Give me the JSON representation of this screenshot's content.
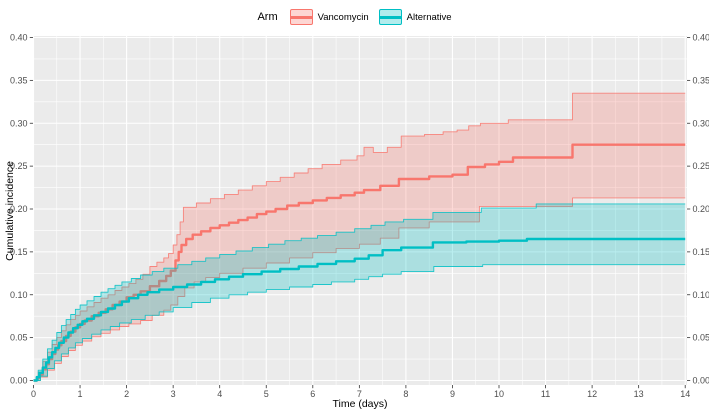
{
  "chart_data": {
    "type": "line",
    "subtype": "step-with-confidence-ribbons",
    "title": "",
    "xlabel": "Time (days)",
    "ylabel": "Cumulative incidence",
    "xlim": [
      0,
      14
    ],
    "ylim": [
      0,
      0.4
    ],
    "xticks": [
      0,
      1,
      2,
      3,
      4,
      5,
      6,
      7,
      8,
      9,
      10,
      11,
      12,
      13,
      14
    ],
    "xtick_labels": [
      "0",
      "1",
      "2",
      "3",
      "4",
      "5",
      "6",
      "7",
      "8",
      "9",
      "10",
      "11",
      "12",
      "13",
      "14"
    ],
    "yticks": [
      0.0,
      0.05,
      0.1,
      0.15,
      0.2,
      0.25,
      0.3,
      0.35,
      0.4
    ],
    "ytick_labels": [
      "0.00",
      "0.05",
      "0.10",
      "0.15",
      "0.20",
      "0.25",
      "0.30",
      "0.35",
      "0.40"
    ],
    "secondary_y_axis": true,
    "grid": {
      "major": true,
      "minor": true,
      "color": "#FFFFFF",
      "panel_background": "#EBEBEB"
    },
    "legend": {
      "title": "Arm",
      "position": "top"
    },
    "colors": {
      "vancomycin": "#F8766D",
      "alternative": "#00BFC4",
      "tick_text": "#4D4D4D",
      "tick_mark": "#333333"
    },
    "series": [
      {
        "name": "Vancomycin",
        "color": "#F8766D",
        "line": [
          [
            0,
            0
          ],
          [
            0.07,
            0.003
          ],
          [
            0.13,
            0.007
          ],
          [
            0.2,
            0.013
          ],
          [
            0.27,
            0.019
          ],
          [
            0.33,
            0.025
          ],
          [
            0.4,
            0.031
          ],
          [
            0.47,
            0.036
          ],
          [
            0.53,
            0.041
          ],
          [
            0.6,
            0.046
          ],
          [
            0.7,
            0.052
          ],
          [
            0.8,
            0.057
          ],
          [
            0.9,
            0.062
          ],
          [
            1,
            0.066
          ],
          [
            1.1,
            0.07
          ],
          [
            1.25,
            0.075
          ],
          [
            1.4,
            0.079
          ],
          [
            1.55,
            0.083
          ],
          [
            1.7,
            0.088
          ],
          [
            1.85,
            0.092
          ],
          [
            2,
            0.097
          ],
          [
            2.15,
            0.1
          ],
          [
            2.3,
            0.104
          ],
          [
            2.5,
            0.11
          ],
          [
            2.7,
            0.116
          ],
          [
            2.85,
            0.122
          ],
          [
            2.95,
            0.128
          ],
          [
            3.05,
            0.14
          ],
          [
            3.12,
            0.15
          ],
          [
            3.18,
            0.158
          ],
          [
            3.28,
            0.165
          ],
          [
            3.42,
            0.17
          ],
          [
            3.6,
            0.174
          ],
          [
            3.8,
            0.178
          ],
          [
            4,
            0.181
          ],
          [
            4.2,
            0.184
          ],
          [
            4.4,
            0.187
          ],
          [
            4.6,
            0.19
          ],
          [
            4.8,
            0.194
          ],
          [
            5,
            0.197
          ],
          [
            5.2,
            0.2
          ],
          [
            5.45,
            0.204
          ],
          [
            5.7,
            0.207
          ],
          [
            6,
            0.21
          ],
          [
            6.3,
            0.213
          ],
          [
            6.6,
            0.216
          ],
          [
            6.9,
            0.219
          ],
          [
            7.1,
            0.222
          ],
          [
            7.45,
            0.227
          ],
          [
            7.85,
            0.235
          ],
          [
            8.5,
            0.238
          ],
          [
            9,
            0.24
          ],
          [
            9.33,
            0.249
          ],
          [
            9.7,
            0.252
          ],
          [
            10,
            0.255
          ],
          [
            10.3,
            0.26
          ],
          [
            11.58,
            0.275
          ],
          [
            14,
            0.275
          ]
        ],
        "upper": [
          [
            0,
            0
          ],
          [
            0.1,
            0.01
          ],
          [
            0.2,
            0.022
          ],
          [
            0.3,
            0.033
          ],
          [
            0.4,
            0.042
          ],
          [
            0.5,
            0.05
          ],
          [
            0.6,
            0.058
          ],
          [
            0.7,
            0.065
          ],
          [
            0.8,
            0.071
          ],
          [
            0.9,
            0.076
          ],
          [
            1,
            0.081
          ],
          [
            1.15,
            0.086
          ],
          [
            1.3,
            0.091
          ],
          [
            1.45,
            0.096
          ],
          [
            1.6,
            0.1
          ],
          [
            1.75,
            0.105
          ],
          [
            1.9,
            0.109
          ],
          [
            2.05,
            0.113
          ],
          [
            2.2,
            0.118
          ],
          [
            2.35,
            0.124
          ],
          [
            2.5,
            0.133
          ],
          [
            2.65,
            0.138
          ],
          [
            2.8,
            0.143
          ],
          [
            2.9,
            0.148
          ],
          [
            3,
            0.158
          ],
          [
            3.08,
            0.17
          ],
          [
            3.15,
            0.185
          ],
          [
            3.22,
            0.202
          ],
          [
            3.5,
            0.207
          ],
          [
            3.8,
            0.212
          ],
          [
            4.1,
            0.217
          ],
          [
            4.4,
            0.222
          ],
          [
            4.7,
            0.227
          ],
          [
            5,
            0.232
          ],
          [
            5.3,
            0.237
          ],
          [
            5.6,
            0.242
          ],
          [
            5.9,
            0.247
          ],
          [
            6.2,
            0.252
          ],
          [
            6.6,
            0.257
          ],
          [
            6.95,
            0.262
          ],
          [
            7.1,
            0.272
          ],
          [
            7.3,
            0.266
          ],
          [
            7.6,
            0.272
          ],
          [
            7.9,
            0.285
          ],
          [
            8.4,
            0.287
          ],
          [
            8.8,
            0.29
          ],
          [
            9.1,
            0.292
          ],
          [
            9.35,
            0.297
          ],
          [
            9.6,
            0.3
          ],
          [
            10.2,
            0.304
          ],
          [
            11.58,
            0.335
          ],
          [
            14,
            0.335
          ]
        ],
        "lower": [
          [
            0,
            0
          ],
          [
            0.15,
            0.004
          ],
          [
            0.3,
            0.012
          ],
          [
            0.45,
            0.02
          ],
          [
            0.6,
            0.028
          ],
          [
            0.75,
            0.035
          ],
          [
            0.9,
            0.041
          ],
          [
            1.05,
            0.046
          ],
          [
            1.25,
            0.051
          ],
          [
            1.45,
            0.055
          ],
          [
            1.65,
            0.059
          ],
          [
            1.85,
            0.063
          ],
          [
            2.05,
            0.066
          ],
          [
            2.3,
            0.07
          ],
          [
            2.55,
            0.076
          ],
          [
            2.8,
            0.082
          ],
          [
            2.95,
            0.088
          ],
          [
            3.1,
            0.098
          ],
          [
            3.25,
            0.108
          ],
          [
            3.45,
            0.115
          ],
          [
            3.7,
            0.12
          ],
          [
            4,
            0.125
          ],
          [
            4.5,
            0.131
          ],
          [
            5,
            0.137
          ],
          [
            5.5,
            0.143
          ],
          [
            6,
            0.149
          ],
          [
            6.5,
            0.154
          ],
          [
            7,
            0.159
          ],
          [
            7.45,
            0.166
          ],
          [
            7.85,
            0.178
          ],
          [
            8.5,
            0.185
          ],
          [
            9.58,
            0.203
          ],
          [
            11.58,
            0.213
          ],
          [
            14,
            0.213
          ]
        ]
      },
      {
        "name": "Alternative",
        "color": "#00BFC4",
        "line": [
          [
            0,
            0
          ],
          [
            0.07,
            0.004
          ],
          [
            0.13,
            0.009
          ],
          [
            0.2,
            0.015
          ],
          [
            0.27,
            0.021
          ],
          [
            0.33,
            0.027
          ],
          [
            0.4,
            0.033
          ],
          [
            0.47,
            0.038
          ],
          [
            0.55,
            0.044
          ],
          [
            0.65,
            0.05
          ],
          [
            0.75,
            0.056
          ],
          [
            0.85,
            0.061
          ],
          [
            0.95,
            0.065
          ],
          [
            1.05,
            0.069
          ],
          [
            1.15,
            0.072
          ],
          [
            1.3,
            0.076
          ],
          [
            1.45,
            0.08
          ],
          [
            1.6,
            0.084
          ],
          [
            1.75,
            0.088
          ],
          [
            1.9,
            0.092
          ],
          [
            2.05,
            0.096
          ],
          [
            2.25,
            0.1
          ],
          [
            2.45,
            0.103
          ],
          [
            2.7,
            0.106
          ],
          [
            3,
            0.109
          ],
          [
            3.3,
            0.112
          ],
          [
            3.6,
            0.115
          ],
          [
            3.9,
            0.118
          ],
          [
            4.2,
            0.121
          ],
          [
            4.5,
            0.124
          ],
          [
            4.9,
            0.127
          ],
          [
            5.3,
            0.13
          ],
          [
            5.7,
            0.133
          ],
          [
            6.1,
            0.136
          ],
          [
            6.5,
            0.139
          ],
          [
            6.9,
            0.142
          ],
          [
            7.2,
            0.146
          ],
          [
            7.5,
            0.152
          ],
          [
            7.9,
            0.155
          ],
          [
            8.58,
            0.161
          ],
          [
            9.3,
            0.162
          ],
          [
            10,
            0.163
          ],
          [
            10.6,
            0.165
          ],
          [
            14,
            0.165
          ]
        ],
        "upper": [
          [
            0,
            0
          ],
          [
            0.1,
            0.012
          ],
          [
            0.2,
            0.025
          ],
          [
            0.3,
            0.037
          ],
          [
            0.4,
            0.047
          ],
          [
            0.5,
            0.056
          ],
          [
            0.6,
            0.064
          ],
          [
            0.7,
            0.071
          ],
          [
            0.8,
            0.077
          ],
          [
            0.9,
            0.083
          ],
          [
            1,
            0.088
          ],
          [
            1.15,
            0.093
          ],
          [
            1.3,
            0.098
          ],
          [
            1.45,
            0.103
          ],
          [
            1.6,
            0.107
          ],
          [
            1.75,
            0.111
          ],
          [
            1.9,
            0.115
          ],
          [
            2.1,
            0.119
          ],
          [
            2.3,
            0.123
          ],
          [
            2.55,
            0.127
          ],
          [
            2.8,
            0.131
          ],
          [
            3.1,
            0.135
          ],
          [
            3.4,
            0.139
          ],
          [
            3.7,
            0.143
          ],
          [
            4,
            0.147
          ],
          [
            4.35,
            0.151
          ],
          [
            4.7,
            0.155
          ],
          [
            5.05,
            0.159
          ],
          [
            5.4,
            0.163
          ],
          [
            5.75,
            0.166
          ],
          [
            6.1,
            0.169
          ],
          [
            6.5,
            0.173
          ],
          [
            6.9,
            0.177
          ],
          [
            7.25,
            0.181
          ],
          [
            7.55,
            0.185
          ],
          [
            7.95,
            0.188
          ],
          [
            8.58,
            0.196
          ],
          [
            9.62,
            0.201
          ],
          [
            10.8,
            0.206
          ],
          [
            14,
            0.206
          ]
        ],
        "lower": [
          [
            0,
            0
          ],
          [
            0.15,
            0.005
          ],
          [
            0.3,
            0.014
          ],
          [
            0.45,
            0.023
          ],
          [
            0.6,
            0.031
          ],
          [
            0.75,
            0.038
          ],
          [
            0.9,
            0.044
          ],
          [
            1.05,
            0.049
          ],
          [
            1.25,
            0.054
          ],
          [
            1.45,
            0.059
          ],
          [
            1.65,
            0.063
          ],
          [
            1.85,
            0.067
          ],
          [
            2.1,
            0.071
          ],
          [
            2.4,
            0.076
          ],
          [
            2.7,
            0.08
          ],
          [
            3,
            0.085
          ],
          [
            3.4,
            0.091
          ],
          [
            3.8,
            0.096
          ],
          [
            4.2,
            0.1
          ],
          [
            4.6,
            0.103
          ],
          [
            5,
            0.106
          ],
          [
            5.5,
            0.109
          ],
          [
            6,
            0.112
          ],
          [
            6.4,
            0.115
          ],
          [
            6.9,
            0.118
          ],
          [
            7.2,
            0.121
          ],
          [
            7.5,
            0.124
          ],
          [
            7.9,
            0.127
          ],
          [
            8.6,
            0.133
          ],
          [
            9.65,
            0.135
          ],
          [
            14,
            0.135
          ]
        ]
      }
    ]
  }
}
